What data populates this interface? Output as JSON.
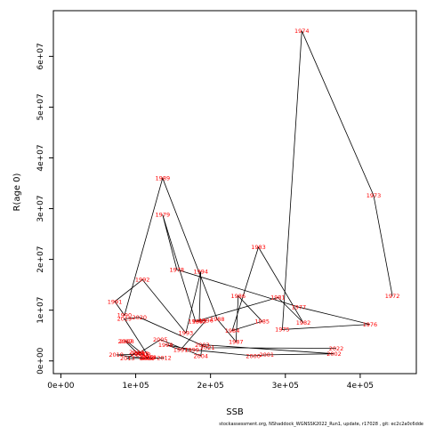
{
  "chart_data": {
    "type": "line",
    "xlabel": "SSB",
    "ylabel": "R(age 0)",
    "footer": "stockassessment.org, NShaddock_WGNSSK2022_Run1, update, r17028 , git: ec2c2a0c6dde",
    "xlim": [
      -10000,
      475000
    ],
    "ylim": [
      -2500000,
      69000000
    ],
    "x_ticks": [
      0,
      100000,
      200000,
      300000,
      400000
    ],
    "x_tick_labels": [
      "0e+00",
      "1e+05",
      "2e+05",
      "3e+05",
      "4e+05"
    ],
    "y_ticks": [
      0,
      10000000,
      20000000,
      30000000,
      40000000,
      50000000,
      60000000
    ],
    "y_tick_labels": [
      "0e+00",
      "1e+07",
      "2e+07",
      "3e+07",
      "4e+07",
      "5e+07",
      "6e+07"
    ],
    "colors": {
      "label": "#ff0000",
      "line": "#000000",
      "axis": "#000000"
    },
    "points": [
      {
        "year": "1972",
        "x": 443000,
        "y": 12800000
      },
      {
        "year": "1973",
        "x": 418000,
        "y": 32600000
      },
      {
        "year": "1974",
        "x": 322000,
        "y": 65000000
      },
      {
        "year": "1975",
        "x": 296000,
        "y": 6200000
      },
      {
        "year": "1976",
        "x": 413000,
        "y": 7200000
      },
      {
        "year": "1977",
        "x": 318000,
        "y": 10600000
      },
      {
        "year": "1978",
        "x": 155000,
        "y": 18000000
      },
      {
        "year": "1979",
        "x": 136000,
        "y": 28800000
      },
      {
        "year": "1980",
        "x": 180000,
        "y": 7800000
      },
      {
        "year": "1981",
        "x": 290000,
        "y": 12500000
      },
      {
        "year": "1982",
        "x": 324000,
        "y": 7500000
      },
      {
        "year": "1983",
        "x": 264000,
        "y": 22400000
      },
      {
        "year": "1984",
        "x": 229000,
        "y": 6000000
      },
      {
        "year": "1985",
        "x": 269000,
        "y": 7800000
      },
      {
        "year": "1986",
        "x": 237000,
        "y": 12800000
      },
      {
        "year": "1987",
        "x": 234000,
        "y": 3800000
      },
      {
        "year": "1988",
        "x": 209000,
        "y": 8200000
      },
      {
        "year": "1989",
        "x": 136000,
        "y": 36000000
      },
      {
        "year": "1990",
        "x": 85000,
        "y": 9000000
      },
      {
        "year": "1991",
        "x": 72000,
        "y": 11700000
      },
      {
        "year": "1992",
        "x": 109000,
        "y": 16000000
      },
      {
        "year": "1993",
        "x": 167000,
        "y": 5500000
      },
      {
        "year": "1994",
        "x": 187000,
        "y": 17600000
      },
      {
        "year": "1995",
        "x": 185000,
        "y": 7800000
      },
      {
        "year": "1996",
        "x": 194000,
        "y": 8000000
      },
      {
        "year": "1997",
        "x": 160000,
        "y": 2200000
      },
      {
        "year": "1998",
        "x": 140000,
        "y": 3200000
      },
      {
        "year": "1999",
        "x": 175000,
        "y": 2200000
      },
      {
        "year": "2000",
        "x": 257000,
        "y": 1000000
      },
      {
        "year": "2001",
        "x": 275000,
        "y": 1200000
      },
      {
        "year": "2002",
        "x": 365000,
        "y": 1400000
      },
      {
        "year": "2003",
        "x": 189000,
        "y": 3200000
      },
      {
        "year": "2004",
        "x": 187000,
        "y": 1000000
      },
      {
        "year": "2005",
        "x": 133000,
        "y": 4200000
      },
      {
        "year": "2006",
        "x": 103000,
        "y": 1400000
      },
      {
        "year": "2007",
        "x": 86000,
        "y": 3900000
      },
      {
        "year": "2008",
        "x": 88000,
        "y": 3900000
      },
      {
        "year": "2009",
        "x": 110000,
        "y": 1300000
      },
      {
        "year": "2010",
        "x": 74000,
        "y": 1200000
      },
      {
        "year": "2011",
        "x": 115000,
        "y": 500000
      },
      {
        "year": "2012",
        "x": 138000,
        "y": 600000
      },
      {
        "year": "2013",
        "x": 89000,
        "y": 500000
      },
      {
        "year": "2014",
        "x": 101000,
        "y": 1800000
      },
      {
        "year": "2015",
        "x": 108000,
        "y": 1500000
      },
      {
        "year": "2016",
        "x": 114000,
        "y": 800000
      },
      {
        "year": "2017",
        "x": 117000,
        "y": 500000
      },
      {
        "year": "2018",
        "x": 118000,
        "y": 700000
      },
      {
        "year": "2019",
        "x": 85000,
        "y": 8300000
      },
      {
        "year": "2020",
        "x": 105000,
        "y": 8600000
      },
      {
        "year": "2021",
        "x": 196000,
        "y": 2600000
      },
      {
        "year": "2022",
        "x": 368000,
        "y": 2500000
      }
    ]
  }
}
